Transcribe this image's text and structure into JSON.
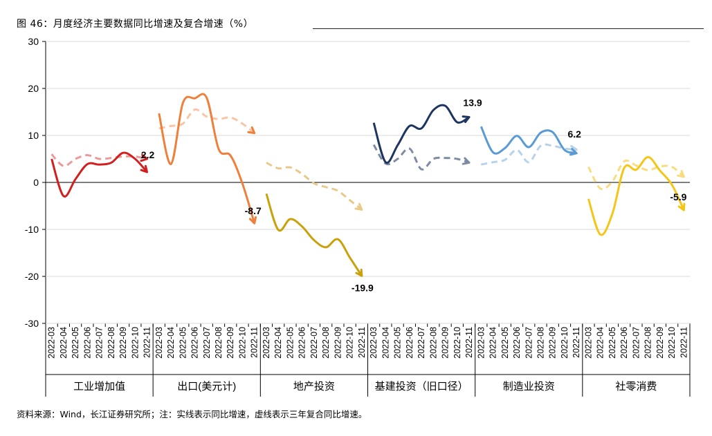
{
  "figure": {
    "title": "图 46：月度经济主要数据同比增速及复合增速（%）",
    "source_note": "资料来源：Wind，长江证券研究所；注：实线表示同比增速，虚线表示三年复合同比增速。"
  },
  "chart_data": {
    "type": "line",
    "y_ticks": [
      "30",
      "20",
      "10",
      "0",
      "-10",
      "-20",
      "-30"
    ],
    "ylim": [
      -30,
      30
    ],
    "months": [
      "2022-03",
      "2022-04",
      "2022-05",
      "2022-06",
      "2022-07",
      "2022-08",
      "2022-09",
      "2022-10",
      "2022-11"
    ],
    "groups": [
      {
        "label": "工业增加值",
        "color": "#d21f1f",
        "end_label": "2.2",
        "yoy": [
          5.0,
          -2.9,
          0.7,
          3.9,
          3.8,
          4.2,
          6.3,
          5.0,
          2.2
        ],
        "cagr": [
          6.0,
          3.5,
          5.0,
          5.8,
          5.0,
          5.2,
          5.5,
          5.5,
          5.0
        ]
      },
      {
        "label": "出口(美元计)",
        "color": "#ef7f3a",
        "end_label": "-8.7",
        "yoy": [
          14.7,
          3.9,
          16.9,
          17.9,
          18.0,
          7.1,
          5.7,
          -0.3,
          -8.7
        ],
        "cagr": [
          11.5,
          12.0,
          12.5,
          15.5,
          14.0,
          13.5,
          13.8,
          12.5,
          10.5
        ]
      },
      {
        "label": "地产投资",
        "color": "#c9a10a",
        "end_label": "-19.9",
        "yoy": [
          -2.4,
          -10.1,
          -7.8,
          -9.4,
          -12.3,
          -13.8,
          -12.1,
          -16.0,
          -19.9
        ],
        "cagr": [
          4.2,
          3.0,
          3.2,
          1.8,
          -0.2,
          -1.0,
          -1.8,
          -3.8,
          -5.8
        ],
        "cagr_color": "#e8c98a"
      },
      {
        "label": "基建投资（旧口径）",
        "color": "#1d3560",
        "end_label": "13.9",
        "yoy": [
          12.7,
          4.3,
          7.9,
          12.0,
          11.5,
          15.4,
          16.3,
          12.8,
          13.9
        ],
        "cagr": [
          8.0,
          4.0,
          5.0,
          7.2,
          2.8,
          5.0,
          5.2,
          5.0,
          4.2
        ],
        "cagr_color": "#7e8ba3"
      },
      {
        "label": "制造业投资",
        "color": "#5b9bd5",
        "end_label": "6.2",
        "yoy": [
          11.9,
          6.4,
          7.3,
          9.9,
          7.5,
          10.6,
          10.7,
          6.9,
          6.2
        ],
        "cagr": [
          3.8,
          4.3,
          4.8,
          6.9,
          4.3,
          7.8,
          7.8,
          7.2,
          7.0
        ],
        "cagr_color": "#b7d2ea"
      },
      {
        "label": "社零消费",
        "color": "#f5c518",
        "end_label": "-5.9",
        "yoy": [
          -3.5,
          -11.1,
          -6.7,
          3.1,
          2.7,
          5.4,
          2.5,
          -0.5,
          -5.9
        ],
        "cagr": [
          3.3,
          -1.3,
          0.2,
          4.5,
          3.6,
          2.6,
          3.4,
          3.3,
          1.2
        ],
        "cagr_color": "#f8dc80"
      }
    ]
  }
}
